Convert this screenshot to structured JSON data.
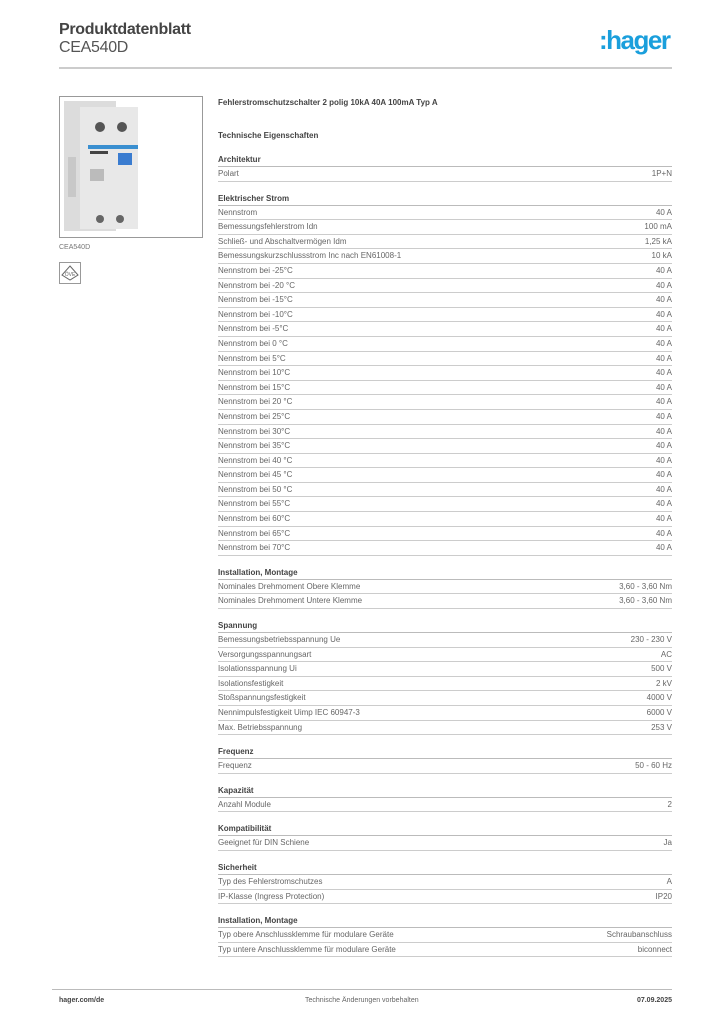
{
  "header": {
    "title": "Produktdatenblatt",
    "code": "CEA540D",
    "logo_text": ":hager",
    "brand_color": "#1a9fdc"
  },
  "product": {
    "image_caption": "CEA540D",
    "description": "Fehlerstromschutzschalter 2 polig 10kA 40A 100mA Typ A",
    "tech_heading": "Technische Eigenschaften",
    "certification_icon": "certification-mark-icon"
  },
  "sections": [
    {
      "title": "Architektur",
      "rows": [
        [
          "Polart",
          "1P+N"
        ]
      ]
    },
    {
      "title": "Elektrischer Strom",
      "rows": [
        [
          "Nennstrom",
          "40 A"
        ],
        [
          "Bemessungsfehlerstrom Idn",
          "100 mA"
        ],
        [
          "Schließ- und Abschaltvermögen Idm",
          "1,25 kA"
        ],
        [
          "Bemessungskurzschlussstrom Inc nach EN61008-1",
          "10 kA"
        ],
        [
          "Nennstrom bei -25°C",
          "40 A"
        ],
        [
          "Nennstrom bei -20 °C",
          "40 A"
        ],
        [
          "Nennstrom bei -15°C",
          "40 A"
        ],
        [
          "Nennstrom bei -10°C",
          "40 A"
        ],
        [
          "Nennstrom bei -5°C",
          "40 A"
        ],
        [
          "Nennstrom bei 0 °C",
          "40 A"
        ],
        [
          "Nennstrom bei 5°C",
          "40 A"
        ],
        [
          "Nennstrom bei 10°C",
          "40 A"
        ],
        [
          "Nennstrom bei 15°C",
          "40 A"
        ],
        [
          "Nennstrom bei 20 °C",
          "40 A"
        ],
        [
          "Nennstrom bei 25°C",
          "40 A"
        ],
        [
          "Nennstrom bei 30°C",
          "40 A"
        ],
        [
          "Nennstrom bei 35°C",
          "40 A"
        ],
        [
          "Nennstrom bei 40 °C",
          "40 A"
        ],
        [
          "Nennstrom bei 45 °C",
          "40 A"
        ],
        [
          "Nennstrom bei 50 °C",
          "40 A"
        ],
        [
          "Nennstrom bei 55°C",
          "40 A"
        ],
        [
          "Nennstrom bei 60°C",
          "40 A"
        ],
        [
          "Nennstrom bei 65°C",
          "40 A"
        ],
        [
          "Nennstrom bei 70°C",
          "40 A"
        ]
      ]
    },
    {
      "title": "Installation, Montage",
      "rows": [
        [
          "Nominales Drehmoment Obere Klemme",
          "3,60 - 3,60 Nm"
        ],
        [
          "Nominales Drehmoment Untere Klemme",
          "3,60 - 3,60 Nm"
        ]
      ]
    },
    {
      "title": "Spannung",
      "rows": [
        [
          "Bemessungsbetriebsspannung Ue",
          "230 - 230 V"
        ],
        [
          "Versorgungsspannungsart",
          "AC"
        ],
        [
          "Isolationsspannung Ui",
          "500 V"
        ],
        [
          "Isolationsfestigkeit",
          "2 kV"
        ],
        [
          "Stoßspannungsfestigkeit",
          "4000 V"
        ],
        [
          "Nennimpulsfestigkeit Uimp IEC 60947-3",
          "6000 V"
        ],
        [
          "Max. Betriebsspannung",
          "253 V"
        ]
      ]
    },
    {
      "title": "Frequenz",
      "rows": [
        [
          "Frequenz",
          "50 - 60 Hz"
        ]
      ]
    },
    {
      "title": "Kapazität",
      "rows": [
        [
          "Anzahl Module",
          "2"
        ]
      ]
    },
    {
      "title": "Kompatibilität",
      "rows": [
        [
          "Geeignet für DIN Schiene",
          "Ja"
        ]
      ]
    },
    {
      "title": "Sicherheit",
      "rows": [
        [
          "Typ des Fehlerstromschutzes",
          "A"
        ],
        [
          "IP-Klasse (Ingress Protection)",
          "IP20"
        ]
      ]
    },
    {
      "title": "Installation, Montage",
      "rows": [
        [
          "Typ obere Anschlussklemme für modulare Geräte",
          "Schraubanschluss"
        ],
        [
          "Typ untere Anschlussklemme für modulare Geräte",
          "biconnect"
        ]
      ]
    }
  ],
  "footer": {
    "website": "hager.com/de",
    "note": "Technische Änderungen vorbehalten",
    "date": "07.09.2025"
  }
}
